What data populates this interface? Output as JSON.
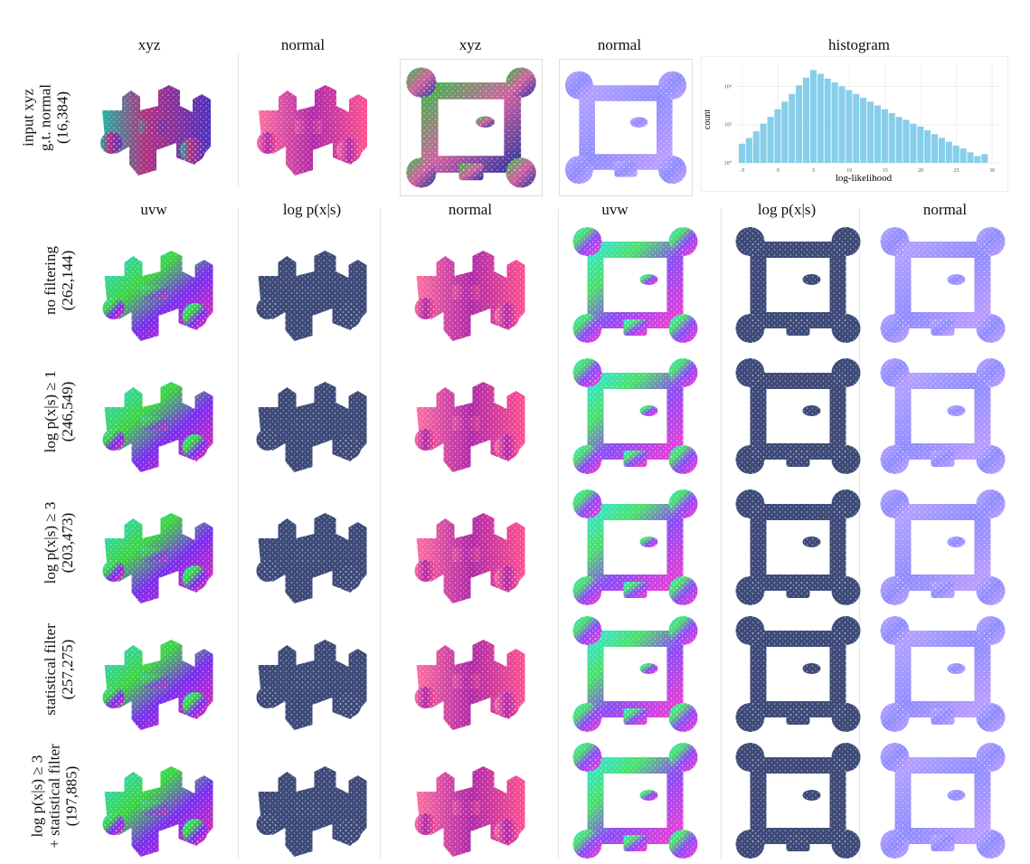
{
  "top_headers": [
    "xyz",
    "normal",
    "xyz",
    "normal",
    "histogram"
  ],
  "sub_headers": [
    "uvw",
    "log p(x|s)",
    "normal",
    "uvw",
    "log p(x|s)",
    "normal"
  ],
  "rows": [
    {
      "lines": [
        "input xyz",
        "g.t. normal",
        "(16,384)"
      ]
    },
    {
      "lines": [
        "no filtering",
        "(262,144)"
      ]
    },
    {
      "lines": [
        "log p(x|s) ≥ 1",
        "(246,549)"
      ]
    },
    {
      "lines": [
        "log p(x|s) ≥ 3",
        "(203,473)"
      ]
    },
    {
      "lines": [
        "statistical filter",
        "(257,275)"
      ]
    },
    {
      "lines": [
        "log p(x|s) ≥ 3",
        "+ statistical filter",
        "(197,885)"
      ]
    }
  ],
  "icons": {
    "object_a": "castle-render",
    "object_b": "frame-render"
  },
  "chart_data": {
    "type": "bar",
    "xlabel": "log-likelihood",
    "ylabel": "count",
    "x_ticks": [
      "-5",
      "0",
      "5",
      "10",
      "15",
      "20",
      "25",
      "30"
    ],
    "y_ticks": [
      "10⁰",
      "10²",
      "10⁴"
    ],
    "x_range": [
      -6,
      31
    ],
    "log_y": true,
    "grid": true,
    "bar_color": "#87ceeb",
    "bins": [
      -5,
      -4,
      -3,
      -2,
      -1,
      0,
      1,
      2,
      3,
      4,
      5,
      6,
      7,
      8,
      9,
      10,
      11,
      12,
      13,
      14,
      15,
      16,
      17,
      18,
      19,
      20,
      21,
      22,
      23,
      24,
      25,
      26,
      27,
      28,
      29
    ],
    "log10_counts": [
      1.0,
      1.3,
      1.65,
      2.05,
      2.4,
      2.8,
      3.2,
      3.6,
      4.05,
      4.45,
      4.85,
      4.65,
      4.4,
      4.2,
      4.0,
      3.8,
      3.6,
      3.4,
      3.2,
      3.0,
      2.8,
      2.6,
      2.4,
      2.25,
      2.05,
      1.9,
      1.7,
      1.5,
      1.3,
      1.1,
      0.9,
      0.75,
      0.55,
      0.35,
      0.45
    ]
  }
}
